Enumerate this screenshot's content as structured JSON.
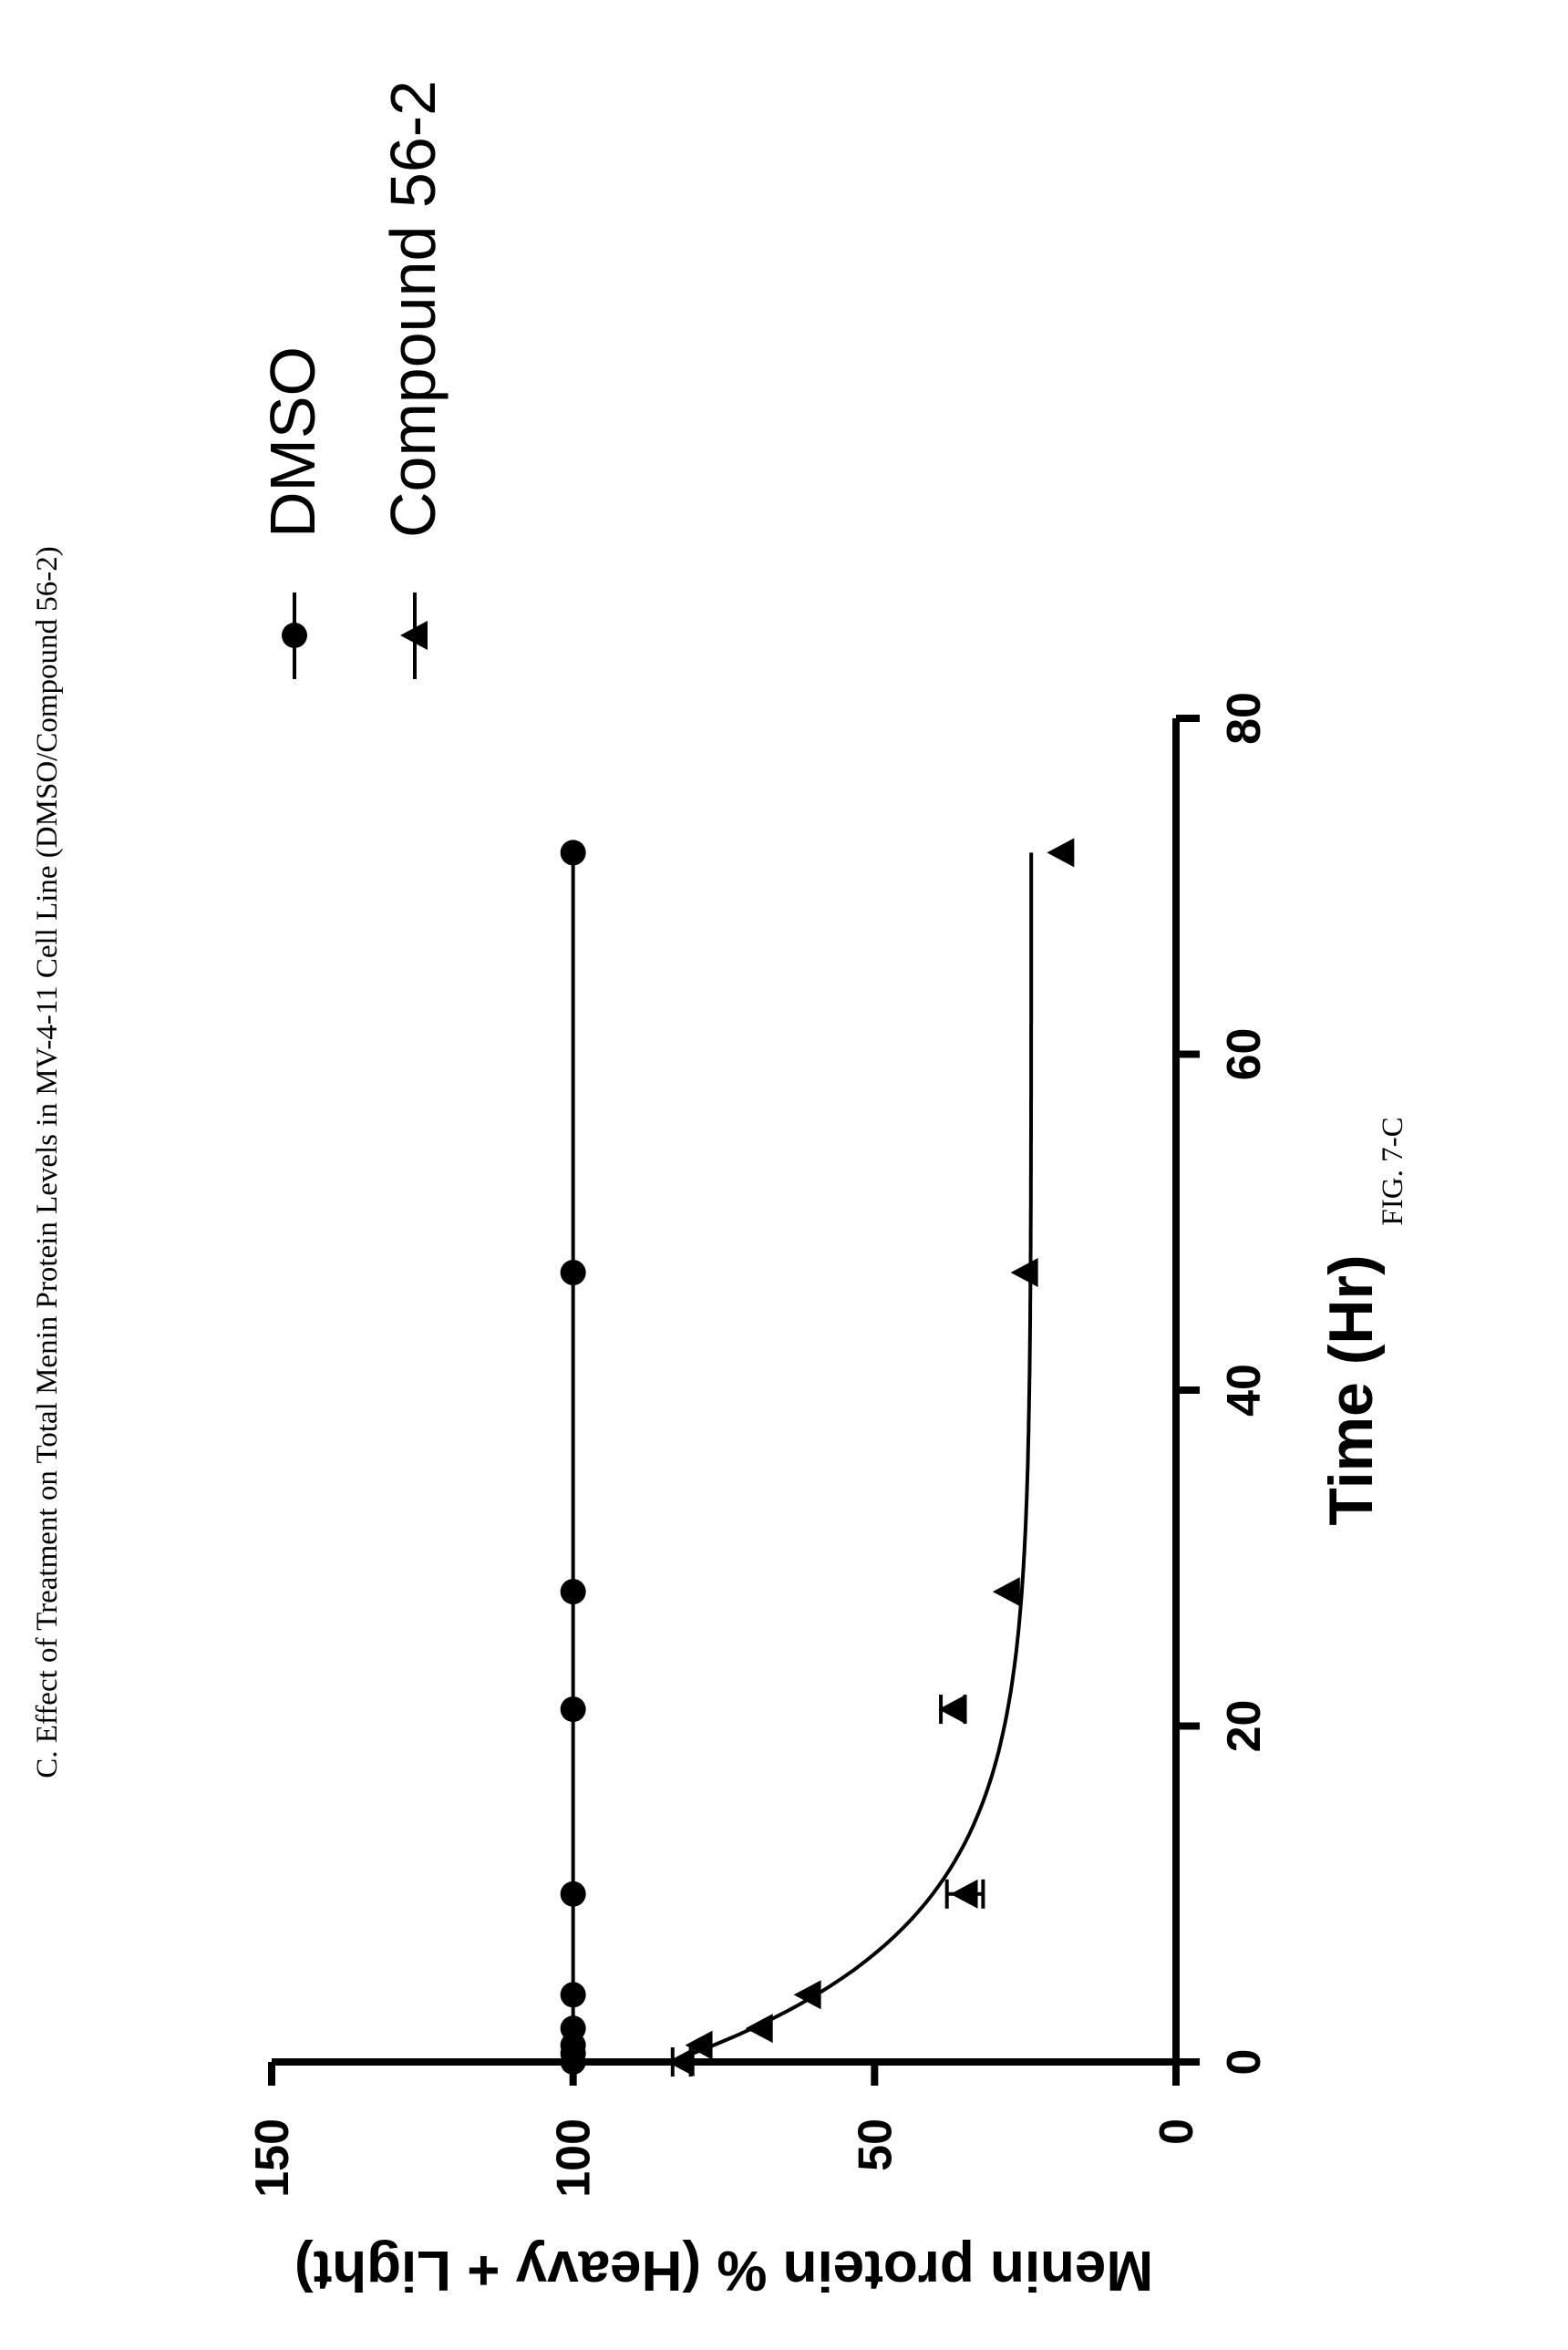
{
  "figure": {
    "caption": "C. Effect of Treatment on Total Menin Protein Levels in MV-4-11 Cell Line (DMSO/Compound 56-2)",
    "label": "FIG. 7-C"
  },
  "chart_data": {
    "type": "scatter",
    "orientation": "rotated 90° counter-clockwise",
    "title": "",
    "xlabel": "Time (Hr)",
    "ylabel": "Menin protein % (Heavy + Light)",
    "xlim": [
      0,
      80
    ],
    "ylim": [
      0,
      150
    ],
    "x_ticks": [
      "0",
      "20",
      "40",
      "60",
      "80"
    ],
    "y_ticks": [
      "0",
      "50",
      "100",
      "150"
    ],
    "legend_position": "top-right",
    "series": [
      {
        "name": "DMSO",
        "marker": "circle",
        "x": [
          0,
          0.5,
          1,
          2,
          4,
          10,
          21,
          28,
          47,
          72
        ],
        "y": [
          100,
          100,
          100,
          100,
          100,
          100,
          100,
          100,
          100,
          100
        ],
        "fit": "line"
      },
      {
        "name": "Compound 56-2",
        "marker": "triangle-down",
        "x": [
          0,
          1,
          2,
          4,
          10,
          21,
          28,
          47,
          72
        ],
        "y": [
          82,
          79,
          69,
          61,
          35,
          37,
          28,
          25,
          19
        ],
        "error": [
          1.5,
          1,
          1,
          1,
          3,
          2,
          1,
          1,
          1
        ],
        "fit": "one-phase decay"
      }
    ]
  }
}
